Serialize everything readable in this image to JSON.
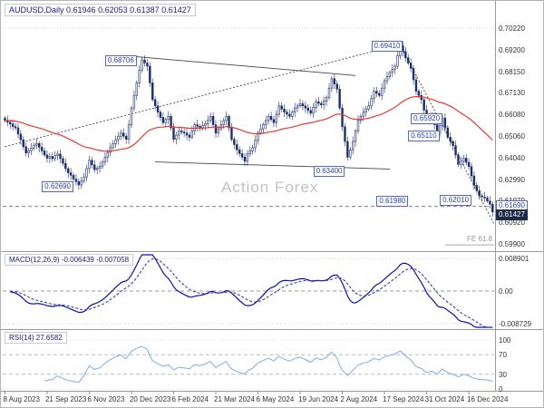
{
  "header": {
    "symbol": "AUDUSD,Daily",
    "open": "0.61946",
    "high": "0.62053",
    "low": "0.61387",
    "close": "0.61427"
  },
  "watermark": "Action Forex",
  "indicators": {
    "macd": {
      "label": "MACD(12,26,9)",
      "values": "-0.006439 -0.007058",
      "axis": [
        "0.008901",
        "0.00",
        "-0.008729"
      ]
    },
    "rsi": {
      "label": "RSI(14)",
      "value": "27.6582",
      "axis": [
        "100",
        "70",
        "30",
        "0"
      ]
    }
  },
  "price_axis": {
    "ticks": [
      "0.70220",
      "0.69200",
      "0.68150",
      "0.67130",
      "0.66080",
      "0.65060",
      "0.64040",
      "0.62990",
      "0.61970",
      "0.60920",
      "0.59900"
    ],
    "boxes": [
      {
        "text": "0.61690",
        "price": 0.6169,
        "current": false
      },
      {
        "text": "0.61427",
        "price": 0.61427,
        "current": true
      }
    ]
  },
  "date_axis": {
    "labels": [
      "8 Aug 2023",
      "21 Sep 2023",
      "6 Nov 2023",
      "20 Dec 2023",
      "6 Feb 2024",
      "21 Mar 2024",
      "6 May 2024",
      "19 Jun 2024",
      "2 Aug 2024",
      "17 Sep 2024",
      "31 Oct 2024",
      "16 Dec 2024"
    ],
    "bars": [
      0,
      16,
      32,
      48,
      64,
      80,
      96,
      112,
      128,
      144,
      160,
      176
    ]
  },
  "annotations": {
    "price_labels": [
      {
        "text": "0.68706",
        "bar": 38,
        "price": 0.68706
      },
      {
        "text": "0.69410",
        "bar": 139,
        "price": 0.6941
      },
      {
        "text": "0.65920",
        "bar": 154,
        "price": 0.6592
      },
      {
        "text": "0.65110",
        "bar": 153,
        "price": 0.6511
      },
      {
        "text": "0.63400",
        "bar": 117,
        "price": 0.634
      },
      {
        "text": "0.62690",
        "bar": 14,
        "price": 0.6269
      },
      {
        "text": "0.62010",
        "bar": 165,
        "price": 0.6201
      },
      {
        "text": "0.61980",
        "bar": 141,
        "price": 0.6198
      }
    ],
    "trendlines": [
      {
        "b1": 50,
        "p1": 0.6885,
        "b2": 133,
        "p2": 0.6795,
        "style": "solid"
      },
      {
        "b1": 0,
        "p1": 0.6455,
        "b2": 150,
        "p2": 0.6945,
        "style": "dotted"
      },
      {
        "b1": 57,
        "p1": 0.6382,
        "b2": 146,
        "p2": 0.6348,
        "style": "solid"
      },
      {
        "b1": 150,
        "p1": 0.6941,
        "b2": 186,
        "p2": 0.6085,
        "style": "dotted"
      }
    ],
    "hlines": [
      {
        "price": 0.7022,
        "color": "#c9c9c9",
        "dash": "1,2"
      },
      {
        "price": 0.6169,
        "color": "#555555",
        "dash": "4,3"
      }
    ],
    "fe": {
      "label": "FE 61.8",
      "price": 0.5985,
      "from_bar": 167
    }
  },
  "colors": {
    "candle": "#1c2f6b",
    "ma": "#e8392f",
    "macd_line": "#0f0fa8",
    "macd_signal": "#2a2ab0",
    "rsi_line": "#7aadee",
    "label_blue": "#2b3faf",
    "current_box_bg": "#1c2b4a"
  },
  "chart_data": {
    "type": "candlestick",
    "title": "AUDUSD Daily with MACD(12,26,9) and RSI(14)",
    "symbol": "AUDUSD",
    "timeframe": "Daily",
    "ohlc_display": {
      "open": 0.61946,
      "high": 0.62053,
      "low": 0.61387,
      "close": 0.61427
    },
    "price_range": [
      0.599,
      0.7022
    ],
    "x_tick_labels": [
      "8 Aug 2023",
      "21 Sep 2023",
      "6 Nov 2023",
      "20 Dec 2023",
      "6 Feb 2024",
      "21 Mar 2024",
      "6 May 2024",
      "19 Jun 2024",
      "2 Aug 2024",
      "17 Sep 2024",
      "31 Oct 2024",
      "16 Dec 2024"
    ],
    "key_levels": [
      0.6941,
      0.68706,
      0.6592,
      0.6511,
      0.634,
      0.6269,
      0.6201,
      0.6198,
      0.6169
    ],
    "fibonacci_extension": {
      "label": "FE 61.8",
      "price": 0.5985
    },
    "closes": [
      0.658,
      0.6572,
      0.6563,
      0.6551,
      0.6545,
      0.6515,
      0.6488,
      0.6455,
      0.6425,
      0.6436,
      0.6448,
      0.6462,
      0.647,
      0.6452,
      0.6435,
      0.6415,
      0.64,
      0.6408,
      0.6398,
      0.6412,
      0.642,
      0.6398,
      0.6375,
      0.635,
      0.633,
      0.6318,
      0.63,
      0.6288,
      0.6272,
      0.629,
      0.631,
      0.635,
      0.639,
      0.6368,
      0.6345,
      0.6352,
      0.636,
      0.6382,
      0.6405,
      0.6428,
      0.645,
      0.6468,
      0.6488,
      0.6505,
      0.652,
      0.6505,
      0.649,
      0.656,
      0.664,
      0.67,
      0.676,
      0.682,
      0.687,
      0.6855,
      0.684,
      0.676,
      0.668,
      0.665,
      0.662,
      0.6595,
      0.657,
      0.6585,
      0.66,
      0.6545,
      0.649,
      0.651,
      0.653,
      0.6525,
      0.652,
      0.651,
      0.65,
      0.653,
      0.656,
      0.6552,
      0.6545,
      0.6555,
      0.6565,
      0.6582,
      0.66,
      0.656,
      0.652,
      0.654,
      0.656,
      0.658,
      0.66,
      0.6545,
      0.649,
      0.6465,
      0.644,
      0.6422,
      0.6405,
      0.6385,
      0.642,
      0.6435,
      0.645,
      0.6485,
      0.652,
      0.654,
      0.656,
      0.658,
      0.66,
      0.6585,
      0.657,
      0.661,
      0.665,
      0.6635,
      0.662,
      0.661,
      0.66,
      0.662,
      0.664,
      0.665,
      0.666,
      0.665,
      0.664,
      0.6628,
      0.6615,
      0.6642,
      0.667,
      0.6662,
      0.6655,
      0.6672,
      0.669,
      0.6735,
      0.678,
      0.6755,
      0.673,
      0.664,
      0.655,
      0.648,
      0.6405,
      0.644,
      0.648,
      0.653,
      0.658,
      0.66,
      0.662,
      0.6635,
      0.665,
      0.6685,
      0.672,
      0.671,
      0.67,
      0.6735,
      0.677,
      0.679,
      0.681,
      0.6825,
      0.684,
      0.689,
      0.6937,
      0.691,
      0.688,
      0.6855,
      0.683,
      0.6775,
      0.672,
      0.67,
      0.668,
      0.663,
      0.658,
      0.659,
      0.66,
      0.656,
      0.652,
      0.6555,
      0.6592,
      0.6545,
      0.65,
      0.648,
      0.646,
      0.6415,
      0.637,
      0.6385,
      0.64,
      0.638,
      0.636,
      0.6315,
      0.627,
      0.6245,
      0.622,
      0.6215,
      0.621,
      0.6195,
      0.618,
      0.6143
    ],
    "indicators": {
      "ma": {
        "type": "ema",
        "period": 55
      },
      "macd": {
        "params": [
          12,
          26,
          9
        ],
        "last_macd": -0.006439,
        "last_signal": -0.007058,
        "axis_max": 0.008901,
        "axis_min": -0.008729
      },
      "rsi": {
        "period": 14,
        "last": 27.6582,
        "axis": [
          100,
          70,
          30,
          0
        ]
      }
    }
  }
}
